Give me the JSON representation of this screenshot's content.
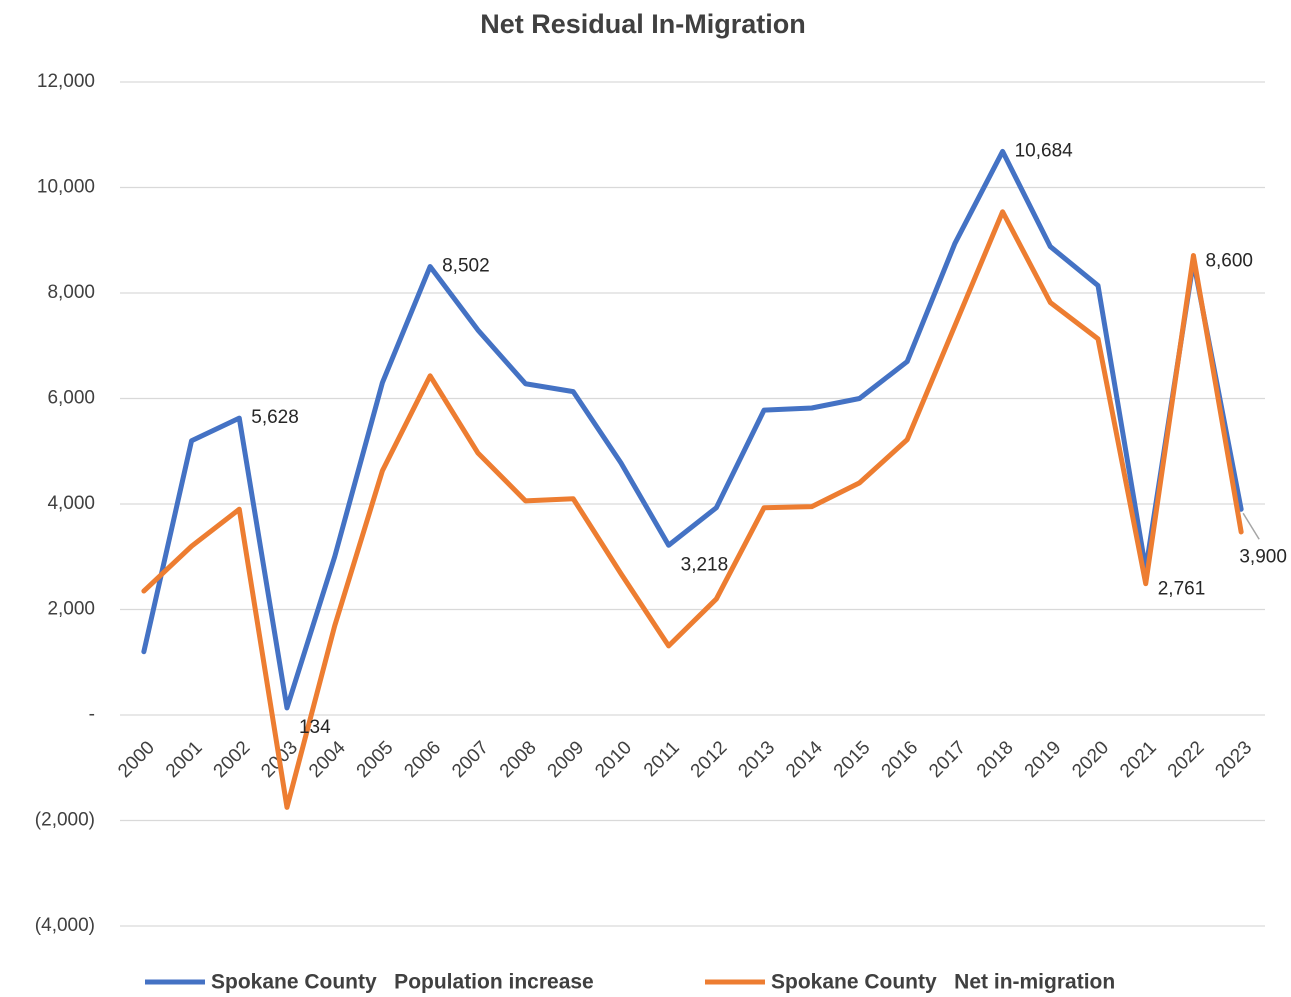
{
  "chart_data": {
    "type": "line",
    "title": "Net Residual In-Migration",
    "categories": [
      "2000",
      "2001",
      "2002",
      "2003",
      "2004",
      "2005",
      "2006",
      "2007",
      "2008",
      "2009",
      "2010",
      "2011",
      "2012",
      "2013",
      "2014",
      "2015",
      "2016",
      "2017",
      "2018",
      "2019",
      "2020",
      "2021",
      "2022",
      "2023"
    ],
    "series": [
      {
        "name": "Spokane County   Population increase",
        "color": "#4472c4",
        "values": [
          1200,
          5200,
          5628,
          134,
          3000,
          6300,
          8502,
          7300,
          6280,
          6130,
          4780,
          3218,
          3930,
          5780,
          5820,
          6000,
          6700,
          8940,
          10684,
          8880,
          8140,
          2761,
          8600,
          3900
        ],
        "value_labels": [
          null,
          null,
          "5,628",
          "134",
          null,
          null,
          "8,502",
          null,
          null,
          null,
          null,
          "3,218",
          null,
          null,
          null,
          null,
          null,
          null,
          "10,684",
          null,
          null,
          "2,761",
          "8,600",
          "3,900"
        ]
      },
      {
        "name": "Spokane County   Net in-migration",
        "color": "#ed7d31",
        "values": [
          2350,
          3200,
          3900,
          -1750,
          1690,
          4630,
          6430,
          4970,
          4060,
          4100,
          2680,
          1310,
          2200,
          3930,
          3950,
          4400,
          5220,
          7380,
          9540,
          7820,
          7130,
          2490,
          8710,
          3470
        ]
      }
    ],
    "ylim": [
      -4000,
      12000
    ],
    "yticks": [
      {
        "value": -4000,
        "label": "(4,000)"
      },
      {
        "value": -2000,
        "label": "(2,000)"
      },
      {
        "value": 0,
        "label": "-"
      },
      {
        "value": 2000,
        "label": "2,000"
      },
      {
        "value": 4000,
        "label": "4,000"
      },
      {
        "value": 6000,
        "label": "6,000"
      },
      {
        "value": 8000,
        "label": "8,000"
      },
      {
        "value": 10000,
        "label": "10,000"
      },
      {
        "value": 12000,
        "label": "12,000"
      }
    ],
    "grid": true,
    "legend": "bottom"
  }
}
